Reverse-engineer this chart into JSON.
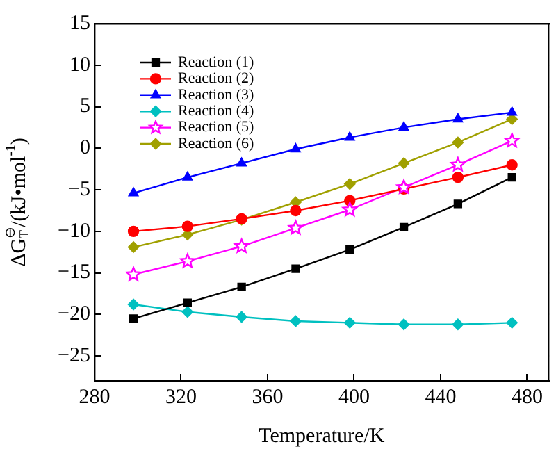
{
  "chart_data": {
    "type": "line",
    "xlabel": "Temperature/K",
    "ylabel": "ΔG$_{T}$$^{⊖}$/(kJ•mol$^{-1}$)",
    "x": [
      298,
      323,
      348,
      373,
      398,
      423,
      448,
      473
    ],
    "series": [
      {
        "name": "Reaction (1)",
        "color": "#000000",
        "marker": "square",
        "values": [
          -20.5,
          -18.6,
          -16.7,
          -14.5,
          -12.2,
          -9.5,
          -6.7,
          -3.5
        ]
      },
      {
        "name": "Reaction (2)",
        "color": "#ff0000",
        "marker": "circle",
        "values": [
          -10,
          -9.4,
          -8.5,
          -7.5,
          -6.3,
          -4.9,
          -3.5,
          -2
        ]
      },
      {
        "name": "Reaction (3)",
        "color": "#0000ff",
        "marker": "triangle",
        "values": [
          -5.4,
          -3.5,
          -1.8,
          -0.1,
          1.3,
          2.5,
          3.5,
          4.3
        ]
      },
      {
        "name": "Reaction (4)",
        "color": "#00c0c0",
        "marker": "diamond",
        "values": [
          -18.8,
          -19.7,
          -20.3,
          -20.8,
          -21.0,
          -21.2,
          -21.2,
          -21.0
        ]
      },
      {
        "name": "Reaction (5)",
        "color": "#ff00ff",
        "marker": "star",
        "values": [
          -15.2,
          -13.6,
          -11.8,
          -9.6,
          -7.4,
          -4.7,
          -2.0,
          0.9
        ]
      },
      {
        "name": "Reaction (6)",
        "color": "#a0a000",
        "marker": "diamond",
        "values": [
          -11.9,
          -10.4,
          -8.6,
          -6.5,
          -4.3,
          -1.8,
          0.7,
          3.5
        ]
      }
    ],
    "xlim": [
      280,
      490
    ],
    "xticks": [
      280,
      320,
      360,
      400,
      440,
      480
    ],
    "ylim": [
      -28,
      15
    ],
    "yticks": [
      -25,
      -20,
      -15,
      -10,
      -5,
      0,
      5,
      10,
      15
    ],
    "grid": false,
    "legend": "top left",
    "line_style": "solid"
  }
}
